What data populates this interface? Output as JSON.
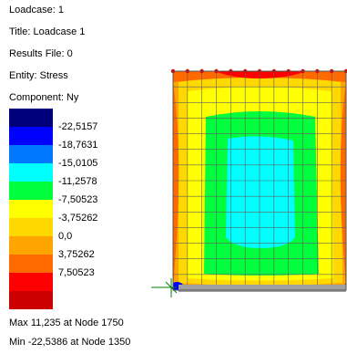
{
  "info": {
    "loadcase": "Loadcase: 1",
    "title": "Title: Loadcase 1",
    "results_file": "Results File: 0",
    "entity": "Entity: Stress",
    "component": "Component: Ny"
  },
  "legend": {
    "levels": [
      "-22,5157",
      "-18,7631",
      "-15,0105",
      "-11,2578",
      "-7,50523",
      "-3,75262",
      "0,0",
      "3,75262",
      "7,50523"
    ],
    "colors": [
      "#00007a",
      "#0000ff",
      "#0078ff",
      "#00ffff",
      "#00ff3c",
      "#ffff00",
      "#ffd800",
      "#ffa500",
      "#ff6a00",
      "#ff0000",
      "#cc0000"
    ]
  },
  "footer": {
    "max": "Max 11,235   at Node 1750",
    "min": "Min -22,5386  at Node 1350"
  }
}
